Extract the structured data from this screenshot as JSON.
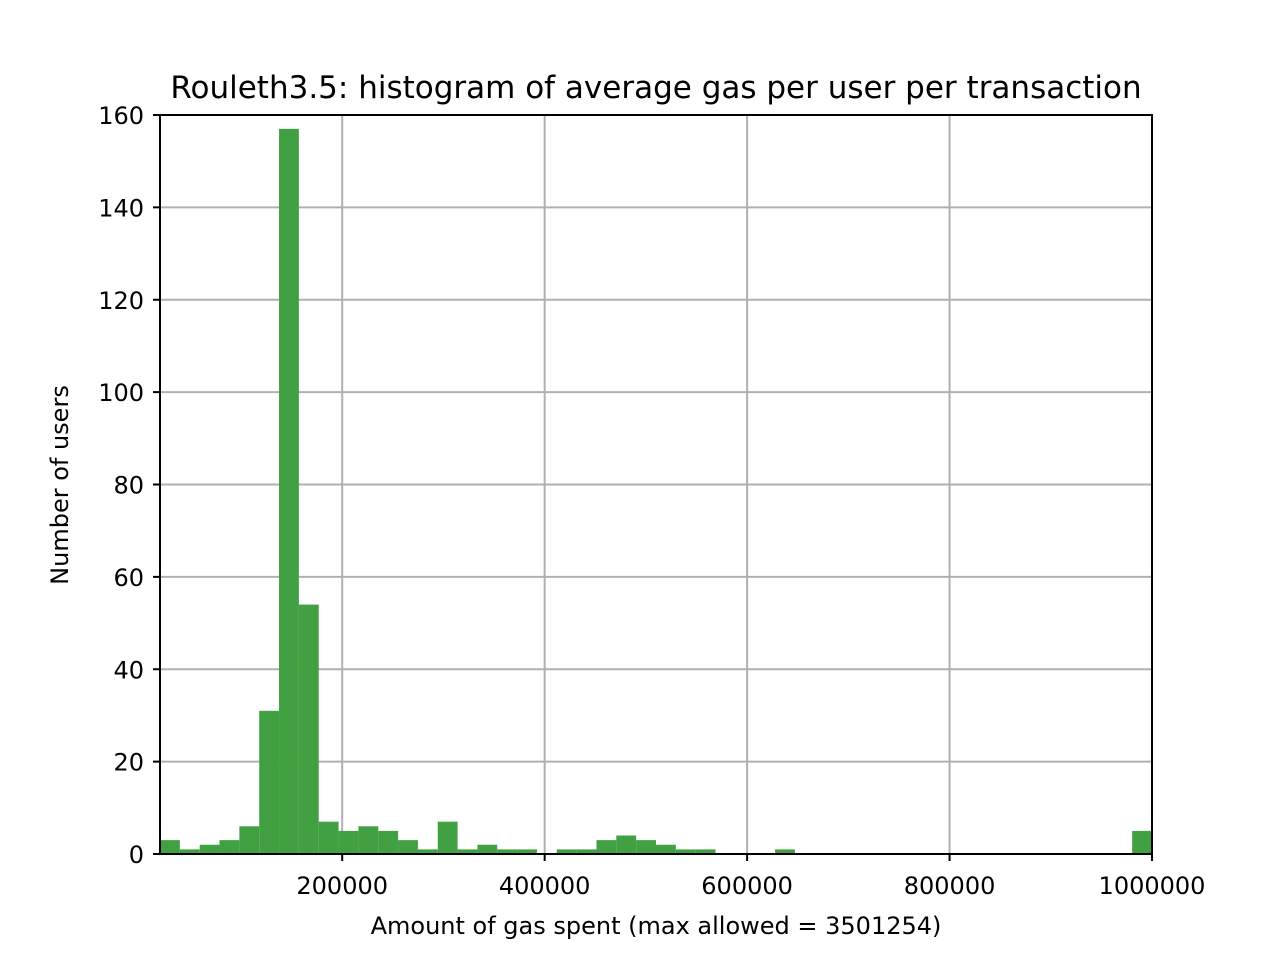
{
  "chart_data": {
    "type": "bar",
    "subtype": "histogram",
    "title": "Rouleth3.5: histogram of average gas per user per transaction",
    "xlabel": "Amount of gas spent (max allowed = 3501254)",
    "ylabel": "Number of users",
    "xlim": [
      20000,
      1000000
    ],
    "ylim": [
      0,
      160
    ],
    "grid": true,
    "bar_color": "#41a041",
    "x_ticks": [
      {
        "value": 200000,
        "label": "200000"
      },
      {
        "value": 400000,
        "label": "400000"
      },
      {
        "value": 600000,
        "label": "600000"
      },
      {
        "value": 800000,
        "label": "800000"
      },
      {
        "value": 1000000,
        "label": "1000000"
      }
    ],
    "y_ticks": [
      {
        "value": 0,
        "label": "0"
      },
      {
        "value": 20,
        "label": "20"
      },
      {
        "value": 40,
        "label": "40"
      },
      {
        "value": 60,
        "label": "60"
      },
      {
        "value": 80,
        "label": "80"
      },
      {
        "value": 100,
        "label": "100"
      },
      {
        "value": 120,
        "label": "120"
      },
      {
        "value": 140,
        "label": "140"
      },
      {
        "value": 160,
        "label": "160"
      }
    ],
    "bins": {
      "start": 20000,
      "end": 1000000,
      "count": 50,
      "values": [
        3,
        1,
        2,
        3,
        6,
        31,
        157,
        54,
        7,
        5,
        6,
        5,
        3,
        1,
        7,
        1,
        2,
        1,
        1,
        0,
        1,
        1,
        3,
        4,
        3,
        2,
        1,
        1,
        0,
        0,
        0,
        1,
        0,
        0,
        0,
        0,
        0,
        0,
        0,
        0,
        0,
        0,
        0,
        0,
        0,
        0,
        0,
        0,
        0,
        5
      ]
    }
  }
}
